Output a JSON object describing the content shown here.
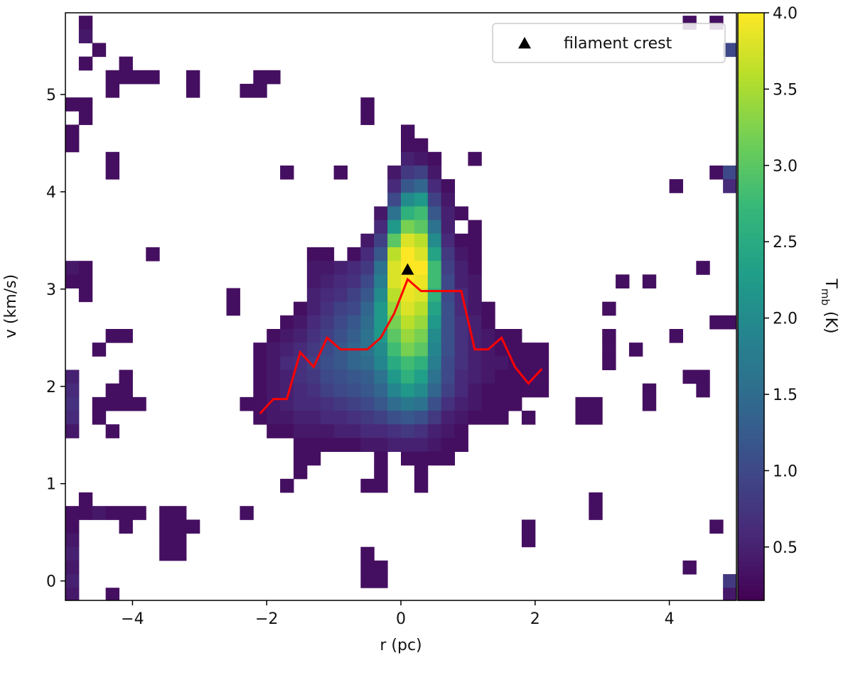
{
  "chart_data": {
    "type": "heatmap",
    "xlabel": "r (pc)",
    "ylabel": "v (km/s)",
    "xlim": [
      -5,
      5
    ],
    "ylim": [
      -0.2,
      5.84
    ],
    "xticks": [
      {
        "value": -4,
        "label": "−4"
      },
      {
        "value": -2,
        "label": "−2"
      },
      0,
      2,
      4
    ],
    "yticks": [
      0,
      1,
      2,
      3,
      4,
      5
    ],
    "colormap": "viridis",
    "clim": [
      0.15,
      4.0
    ],
    "cticks": [
      0.5,
      {
        "value": 1,
        "label": "1.0"
      },
      1.5,
      {
        "value": 2,
        "label": "2.0"
      },
      2.5,
      {
        "value": 3,
        "label": "3.0"
      },
      3.5,
      {
        "value": 4,
        "label": "4.0"
      }
    ],
    "colorbar_label": "T",
    "colorbar_label_subscript": "mb",
    "colorbar_label_unit": "(K)",
    "rows": [
      {
        "y": 5.74,
        "x": [
          -4.7,
          4.3,
          4.7
        ],
        "values": [
          0.3,
          0.3,
          0.3
        ]
      },
      {
        "y": 5.6,
        "x": [
          -4.7
        ],
        "values": [
          0.4
        ]
      },
      {
        "y": 5.46,
        "x": [
          -4.5,
          4.9
        ],
        "values": [
          0.3,
          1.0
        ]
      },
      {
        "y": 5.32,
        "x": [
          -4.7,
          -4.1
        ],
        "values": [
          0.3,
          0.3
        ]
      },
      {
        "y": 5.18,
        "x": [
          -4.3,
          -4.1,
          -3.9,
          -3.7,
          -3.1,
          -2.1,
          -1.9
        ],
        "values": [
          0.3,
          0.3,
          0.3,
          0.3,
          0.3,
          0.3,
          0.3
        ]
      },
      {
        "y": 5.04,
        "x": [
          -4.3,
          -3.1,
          -2.3,
          -2.1
        ],
        "values": [
          0.3,
          0.3,
          0.3,
          0.3
        ]
      },
      {
        "y": 4.9,
        "x": [
          -4.9,
          -4.7,
          -0.5
        ],
        "values": [
          0.3,
          0.3,
          0.3
        ]
      },
      {
        "y": 4.76,
        "x": [
          -4.7,
          -0.5
        ],
        "values": [
          0.3,
          0.3
        ]
      },
      {
        "y": 4.62,
        "x": [
          -4.9,
          0.1
        ],
        "values": [
          0.3,
          0.3
        ]
      },
      {
        "y": 4.48,
        "x": [
          -4.9,
          0.1,
          0.3
        ],
        "values": [
          0.3,
          0.3,
          0.3
        ]
      },
      {
        "y": 4.34,
        "x": [
          -4.3,
          0.1,
          0.3,
          0.5,
          1.1
        ],
        "values": [
          0.3,
          0.5,
          0.4,
          0.3,
          0.3
        ]
      },
      {
        "y": 4.2,
        "x": [
          -4.3,
          -1.7,
          -0.9,
          -0.1,
          0.1,
          0.3,
          0.5,
          4.7,
          4.9
        ],
        "values": [
          0.3,
          0.3,
          0.3,
          0.4,
          0.8,
          0.9,
          0.4,
          0.3,
          1.0
        ]
      },
      {
        "y": 4.06,
        "x": [
          -0.1,
          0.1,
          0.3,
          0.5,
          0.7,
          4.1,
          4.9
        ],
        "values": [
          0.6,
          1.2,
          1.4,
          0.6,
          0.3,
          0.3,
          0.6
        ]
      },
      {
        "y": 3.92,
        "x": [
          -0.1,
          0.1,
          0.3,
          0.5,
          0.7
        ],
        "values": [
          1.0,
          2.0,
          2.2,
          0.9,
          0.4
        ]
      },
      {
        "y": 3.78,
        "x": [
          -0.3,
          -0.1,
          0.1,
          0.3,
          0.5,
          0.7,
          0.9
        ],
        "values": [
          0.4,
          1.6,
          2.6,
          2.8,
          1.2,
          0.5,
          0.3
        ]
      },
      {
        "y": 3.64,
        "x": [
          -0.3,
          -0.1,
          0.1,
          0.3,
          0.5,
          0.7,
          1.1
        ],
        "values": [
          0.6,
          2.2,
          3.2,
          3.0,
          1.6,
          0.5,
          0.3
        ]
      },
      {
        "y": 3.5,
        "x": [
          -0.5,
          -0.3,
          -0.1,
          0.1,
          0.3,
          0.5,
          0.7,
          0.9,
          1.1
        ],
        "values": [
          0.4,
          0.9,
          3.0,
          3.8,
          3.6,
          2.0,
          0.6,
          0.3,
          0.3
        ]
      },
      {
        "y": 3.36,
        "x": [
          -3.7,
          -1.3,
          -1.1,
          -0.7,
          -0.5,
          -0.3,
          -0.1,
          0.1,
          0.3,
          0.5,
          0.7,
          0.9,
          1.1
        ],
        "values": [
          0.3,
          0.3,
          0.3,
          0.3,
          0.6,
          1.2,
          3.6,
          4.0,
          3.8,
          2.4,
          0.8,
          0.4,
          0.3
        ]
      },
      {
        "y": 3.22,
        "x": [
          -4.9,
          -4.7,
          -1.3,
          -1.1,
          -0.9,
          -0.7,
          -0.5,
          -0.3,
          -0.1,
          0.1,
          0.3,
          0.5,
          0.7,
          0.9,
          1.1,
          4.5
        ],
        "values": [
          0.4,
          0.3,
          0.4,
          0.4,
          0.5,
          0.6,
          0.8,
          1.6,
          3.8,
          4.0,
          4.0,
          2.8,
          0.9,
          0.5,
          0.3,
          0.3
        ]
      },
      {
        "y": 3.08,
        "x": [
          -4.9,
          -4.7,
          -1.3,
          -1.1,
          -0.9,
          -0.7,
          -0.5,
          -0.3,
          -0.1,
          0.1,
          0.3,
          0.5,
          0.7,
          0.9,
          1.1,
          3.3,
          3.7
        ],
        "values": [
          0.3,
          0.3,
          0.4,
          0.5,
          0.6,
          0.7,
          1.0,
          1.8,
          3.8,
          4.0,
          3.9,
          2.8,
          1.0,
          0.5,
          0.4,
          0.3,
          0.3
        ]
      },
      {
        "y": 2.94,
        "x": [
          -4.7,
          -2.5,
          -1.3,
          -1.1,
          -0.9,
          -0.7,
          -0.5,
          -0.3,
          -0.1,
          0.1,
          0.3,
          0.5,
          0.7,
          0.9,
          1.1
        ],
        "values": [
          0.3,
          0.3,
          0.5,
          0.6,
          0.7,
          0.9,
          1.2,
          2.0,
          3.6,
          3.9,
          3.8,
          2.6,
          1.0,
          0.6,
          0.4
        ]
      },
      {
        "y": 2.8,
        "x": [
          -2.5,
          -1.5,
          -1.3,
          -1.1,
          -0.9,
          -0.7,
          -0.5,
          -0.3,
          -0.1,
          0.1,
          0.3,
          0.5,
          0.7,
          0.9,
          1.1,
          1.3,
          3.1
        ],
        "values": [
          0.3,
          0.3,
          0.5,
          0.7,
          0.9,
          1.0,
          1.4,
          2.2,
          3.4,
          3.8,
          3.6,
          2.4,
          1.1,
          0.6,
          0.4,
          0.3,
          0.3
        ]
      },
      {
        "y": 2.66,
        "x": [
          -1.7,
          -1.5,
          -1.3,
          -1.1,
          -0.9,
          -0.7,
          -0.5,
          -0.3,
          -0.1,
          0.1,
          0.3,
          0.5,
          0.7,
          0.9,
          1.1,
          1.3,
          4.7,
          4.9
        ],
        "values": [
          0.3,
          0.4,
          0.6,
          0.8,
          1.0,
          1.2,
          1.5,
          2.2,
          3.2,
          3.6,
          3.4,
          2.2,
          1.1,
          0.7,
          0.5,
          0.3,
          0.3,
          0.3
        ]
      },
      {
        "y": 2.52,
        "x": [
          -4.3,
          -4.1,
          -1.9,
          -1.7,
          -1.5,
          -1.3,
          -1.1,
          -0.9,
          -0.7,
          -0.5,
          -0.3,
          -0.1,
          0.1,
          0.3,
          0.5,
          0.7,
          0.9,
          1.1,
          1.3,
          1.5,
          1.7,
          3.1,
          4.1
        ],
        "values": [
          0.3,
          0.3,
          0.3,
          0.4,
          0.5,
          0.7,
          0.9,
          1.1,
          1.3,
          1.6,
          2.2,
          3.0,
          3.4,
          3.2,
          2.0,
          1.1,
          0.7,
          0.5,
          0.4,
          0.3,
          0.3,
          0.3,
          0.3
        ]
      },
      {
        "y": 2.38,
        "x": [
          -4.5,
          -2.1,
          -1.9,
          -1.7,
          -1.5,
          -1.3,
          -1.1,
          -0.9,
          -0.7,
          -0.5,
          -0.3,
          -0.1,
          0.1,
          0.3,
          0.5,
          0.7,
          0.9,
          1.1,
          1.3,
          1.5,
          1.7,
          1.9,
          2.1,
          3.1,
          3.5
        ],
        "values": [
          0.3,
          0.3,
          0.4,
          0.5,
          0.6,
          0.8,
          1.0,
          1.2,
          1.4,
          1.6,
          2.0,
          2.8,
          3.2,
          3.0,
          1.9,
          1.1,
          0.7,
          0.5,
          0.4,
          0.3,
          0.3,
          0.3,
          0.3,
          0.3,
          0.3
        ]
      },
      {
        "y": 2.24,
        "x": [
          -2.1,
          -1.9,
          -1.7,
          -1.5,
          -1.3,
          -1.1,
          -0.9,
          -0.7,
          -0.5,
          -0.3,
          -0.1,
          0.1,
          0.3,
          0.5,
          0.7,
          0.9,
          1.1,
          1.3,
          1.5,
          1.7,
          1.9,
          2.1,
          3.1
        ],
        "values": [
          0.3,
          0.4,
          0.6,
          0.7,
          0.9,
          1.1,
          1.2,
          1.4,
          1.5,
          1.9,
          2.5,
          2.8,
          2.6,
          1.8,
          1.0,
          0.7,
          0.5,
          0.4,
          0.4,
          0.3,
          0.3,
          0.3,
          0.3
        ]
      },
      {
        "y": 2.1,
        "x": [
          -4.9,
          -4.1,
          -2.1,
          -1.9,
          -1.7,
          -1.5,
          -1.3,
          -1.1,
          -0.9,
          -0.7,
          -0.5,
          -0.3,
          -0.1,
          0.1,
          0.3,
          0.5,
          0.7,
          0.9,
          1.1,
          1.3,
          1.5,
          1.7,
          1.9,
          2.1,
          4.3,
          4.5
        ],
        "values": [
          0.5,
          0.3,
          0.3,
          0.4,
          0.5,
          0.7,
          0.8,
          1.0,
          1.1,
          1.2,
          1.3,
          1.6,
          2.2,
          2.6,
          2.3,
          1.6,
          1.0,
          0.6,
          0.5,
          0.4,
          0.3,
          0.3,
          0.3,
          0.3,
          0.3,
          0.3
        ]
      },
      {
        "y": 1.96,
        "x": [
          -4.9,
          -4.3,
          -4.1,
          -2.1,
          -1.9,
          -1.7,
          -1.5,
          -1.3,
          -1.1,
          -0.9,
          -0.7,
          -0.5,
          -0.3,
          -0.1,
          0.1,
          0.3,
          0.5,
          0.7,
          0.9,
          1.1,
          1.3,
          1.5,
          1.7,
          1.9,
          2.1,
          3.7,
          4.5
        ],
        "values": [
          0.6,
          0.3,
          0.3,
          0.3,
          0.4,
          0.5,
          0.6,
          0.7,
          0.9,
          1.0,
          1.1,
          1.2,
          1.4,
          1.9,
          2.2,
          2.0,
          1.4,
          0.9,
          0.6,
          0.4,
          0.3,
          0.3,
          0.3,
          0.3,
          0.3,
          0.3,
          0.3
        ]
      },
      {
        "y": 1.82,
        "x": [
          -4.9,
          -4.5,
          -4.3,
          -4.1,
          -3.9,
          -2.3,
          -2.1,
          -1.9,
          -1.7,
          -1.5,
          -1.3,
          -1.1,
          -0.9,
          -0.7,
          -0.5,
          -0.3,
          -0.1,
          0.1,
          0.3,
          0.5,
          0.7,
          0.9,
          1.1,
          1.3,
          1.5,
          1.7,
          2.7,
          2.9,
          3.7
        ],
        "values": [
          0.7,
          0.3,
          0.3,
          0.3,
          0.3,
          0.3,
          0.3,
          0.4,
          0.5,
          0.6,
          0.6,
          0.7,
          0.8,
          0.9,
          1.0,
          1.2,
          1.5,
          1.7,
          1.6,
          1.1,
          0.7,
          0.5,
          0.4,
          0.3,
          0.3,
          0.3,
          0.3,
          0.3,
          0.3
        ]
      },
      {
        "y": 1.68,
        "x": [
          -4.9,
          -4.5,
          -2.1,
          -1.9,
          -1.7,
          -1.5,
          -1.3,
          -1.1,
          -0.9,
          -0.7,
          -0.5,
          -0.3,
          -0.1,
          0.1,
          0.3,
          0.5,
          0.7,
          0.9,
          1.1,
          1.3,
          1.5,
          1.9,
          2.7,
          2.9
        ],
        "values": [
          0.6,
          0.3,
          0.3,
          0.4,
          0.4,
          0.5,
          0.5,
          0.6,
          0.6,
          0.7,
          0.8,
          0.9,
          1.1,
          1.2,
          1.1,
          0.8,
          0.5,
          0.4,
          0.3,
          0.3,
          0.3,
          0.3,
          0.3,
          0.3
        ]
      },
      {
        "y": 1.54,
        "x": [
          -4.9,
          -4.3,
          -1.9,
          -1.7,
          -1.5,
          -1.3,
          -1.1,
          -0.9,
          -0.7,
          -0.5,
          -0.3,
          -0.1,
          0.1,
          0.3,
          0.5,
          0.7,
          0.9
        ],
        "values": [
          0.4,
          0.3,
          0.3,
          0.3,
          0.4,
          0.4,
          0.4,
          0.5,
          0.5,
          0.6,
          0.6,
          0.7,
          0.8,
          0.7,
          0.5,
          0.4,
          0.3
        ]
      },
      {
        "y": 1.4,
        "x": [
          -1.5,
          -1.3,
          -1.1,
          -0.9,
          -0.7,
          -0.5,
          -0.3,
          -0.1,
          0.1,
          0.3,
          0.5,
          0.7,
          0.9
        ],
        "values": [
          0.3,
          0.3,
          0.3,
          0.3,
          0.3,
          0.4,
          0.4,
          0.5,
          0.5,
          0.5,
          0.4,
          0.3,
          0.3
        ]
      },
      {
        "y": 1.26,
        "x": [
          -1.5,
          -1.3,
          -0.3,
          0.1,
          0.3,
          0.5,
          0.7
        ],
        "values": [
          0.3,
          0.3,
          0.3,
          0.3,
          0.3,
          0.3,
          0.3
        ]
      },
      {
        "y": 1.12,
        "x": [
          -1.5,
          -0.3,
          0.3
        ],
        "values": [
          0.3,
          0.3,
          0.3
        ]
      },
      {
        "y": 0.98,
        "x": [
          -1.7,
          -0.5,
          -0.3,
          0.3
        ],
        "values": [
          0.3,
          0.3,
          0.3,
          0.3
        ]
      },
      {
        "y": 0.84,
        "x": [
          -4.7,
          2.9
        ],
        "values": [
          0.3,
          0.3
        ]
      },
      {
        "y": 0.7,
        "x": [
          -4.9,
          -4.7,
          -4.5,
          -4.3,
          -4.1,
          -3.9,
          -3.5,
          -3.3,
          -2.3,
          2.9
        ],
        "values": [
          0.3,
          0.3,
          0.4,
          0.3,
          0.3,
          0.3,
          0.3,
          0.3,
          0.3,
          0.3
        ]
      },
      {
        "y": 0.56,
        "x": [
          -4.9,
          -4.1,
          -3.5,
          -3.3,
          -3.1,
          1.9,
          4.7
        ],
        "values": [
          0.3,
          0.3,
          0.3,
          0.3,
          0.3,
          0.3,
          0.3
        ]
      },
      {
        "y": 0.42,
        "x": [
          -4.9,
          -3.5,
          -3.3,
          1.9
        ],
        "values": [
          0.4,
          0.3,
          0.3,
          0.3
        ]
      },
      {
        "y": 0.28,
        "x": [
          -4.9,
          -3.5,
          -3.3,
          -0.5
        ],
        "values": [
          0.5,
          0.3,
          0.3,
          0.3
        ]
      },
      {
        "y": 0.14,
        "x": [
          -4.9,
          -0.5,
          -0.3,
          4.3
        ],
        "values": [
          0.4,
          0.3,
          0.3,
          0.3
        ]
      },
      {
        "y": 0.0,
        "x": [
          -4.9,
          -0.5,
          -0.3,
          4.9
        ],
        "values": [
          0.5,
          0.3,
          0.3,
          0.8
        ]
      },
      {
        "y": -0.14,
        "x": [
          -4.9,
          -4.3,
          4.9
        ],
        "values": [
          0.4,
          0.3,
          0.4
        ]
      }
    ],
    "line": {
      "color": "#ff0000",
      "x": [
        -2.1,
        -1.9,
        -1.7,
        -1.5,
        -1.3,
        -1.1,
        -0.9,
        -0.7,
        -0.5,
        -0.3,
        -0.1,
        0.1,
        0.3,
        0.5,
        0.7,
        0.9,
        1.1,
        1.3,
        1.5,
        1.7,
        1.9,
        2.1
      ],
      "y": [
        1.72,
        1.87,
        1.87,
        2.35,
        2.2,
        2.5,
        2.38,
        2.38,
        2.38,
        2.5,
        2.75,
        3.1,
        2.98,
        2.98,
        2.98,
        2.98,
        2.38,
        2.38,
        2.5,
        2.2,
        2.03,
        2.18
      ]
    },
    "markers": {
      "name": "filament crest",
      "color": "#000000",
      "x": [
        0.1
      ],
      "y": [
        3.2
      ]
    },
    "legend": "upper right"
  }
}
